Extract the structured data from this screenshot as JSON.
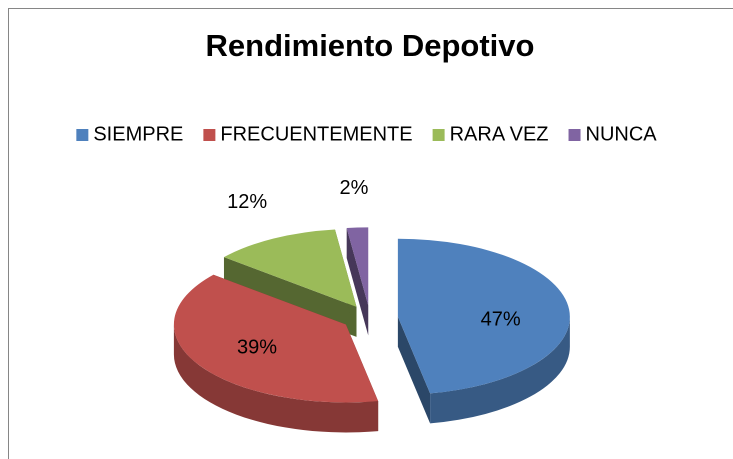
{
  "chart_data": {
    "type": "pie3d",
    "title": "Rendimiento Depotivo",
    "categories": [
      "SIEMPRE",
      "FRECUENTEMENTE",
      "RARA VEZ",
      "NUNCA"
    ],
    "values": [
      47,
      39,
      12,
      2
    ],
    "value_labels": [
      "47%",
      "39%",
      "12%",
      "2%"
    ],
    "colors": [
      "#4f81bd",
      "#c0504d",
      "#9bbb59",
      "#8064a2"
    ],
    "legend": "top"
  }
}
